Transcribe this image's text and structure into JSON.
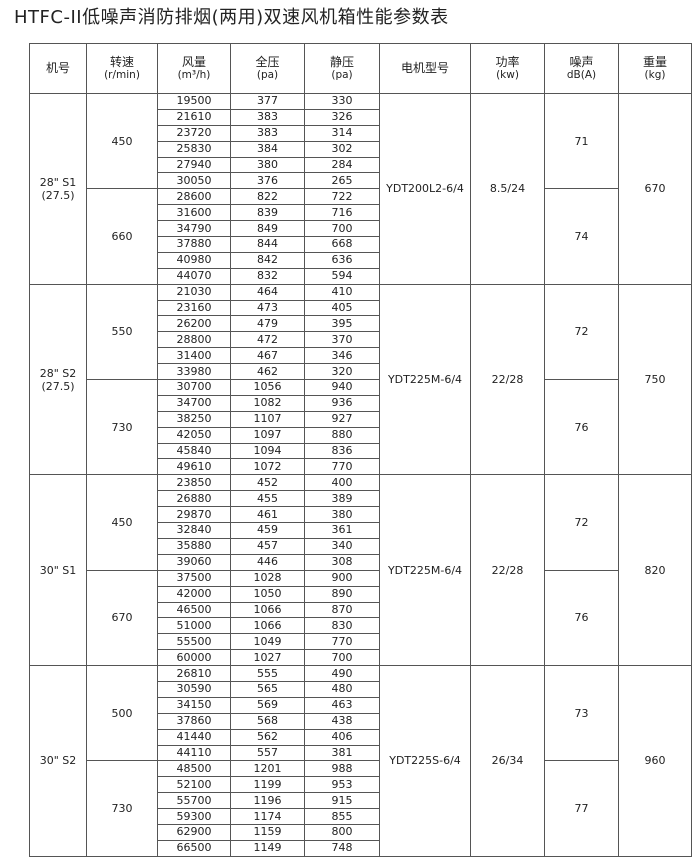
{
  "title": "HTFC-II低噪声消防排烟(两用)双速风机箱性能参数表",
  "headers": [
    {
      "label": "机号",
      "unit": ""
    },
    {
      "label": "转速",
      "unit": "(r/min)"
    },
    {
      "label": "风量",
      "unit": "(m³/h)"
    },
    {
      "label": "全压",
      "unit": "(pa)"
    },
    {
      "label": "静压",
      "unit": "(pa)"
    },
    {
      "label": "电机型号",
      "unit": ""
    },
    {
      "label": "功率",
      "unit": "(kw)"
    },
    {
      "label": "噪声",
      "unit": "dB(A)"
    },
    {
      "label": "重量",
      "unit": "(kg)"
    }
  ],
  "groups": [
    {
      "model": "28\" S1",
      "model_sub": "(27.5)",
      "motor": "YDT200L2-6/4",
      "power": "8.5/24",
      "weight": "670",
      "speeds": [
        {
          "rpm": "450",
          "noise": "71",
          "rows": [
            [
              "19500",
              "377",
              "330"
            ],
            [
              "21610",
              "383",
              "326"
            ],
            [
              "23720",
              "383",
              "314"
            ],
            [
              "25830",
              "384",
              "302"
            ],
            [
              "27940",
              "380",
              "284"
            ],
            [
              "30050",
              "376",
              "265"
            ]
          ]
        },
        {
          "rpm": "660",
          "noise": "74",
          "rows": [
            [
              "28600",
              "822",
              "722"
            ],
            [
              "31600",
              "839",
              "716"
            ],
            [
              "34790",
              "849",
              "700"
            ],
            [
              "37880",
              "844",
              "668"
            ],
            [
              "40980",
              "842",
              "636"
            ],
            [
              "44070",
              "832",
              "594"
            ]
          ]
        }
      ]
    },
    {
      "model": "28\" S2",
      "model_sub": "(27.5)",
      "motor": "YDT225M-6/4",
      "power": "22/28",
      "weight": "750",
      "speeds": [
        {
          "rpm": "550",
          "noise": "72",
          "rows": [
            [
              "21030",
              "464",
              "410"
            ],
            [
              "23160",
              "473",
              "405"
            ],
            [
              "26200",
              "479",
              "395"
            ],
            [
              "28800",
              "472",
              "370"
            ],
            [
              "31400",
              "467",
              "346"
            ],
            [
              "33980",
              "462",
              "320"
            ]
          ]
        },
        {
          "rpm": "730",
          "noise": "76",
          "rows": [
            [
              "30700",
              "1056",
              "940"
            ],
            [
              "34700",
              "1082",
              "936"
            ],
            [
              "38250",
              "1107",
              "927"
            ],
            [
              "42050",
              "1097",
              "880"
            ],
            [
              "45840",
              "1094",
              "836"
            ],
            [
              "49610",
              "1072",
              "770"
            ]
          ]
        }
      ]
    },
    {
      "model": "30\" S1",
      "model_sub": "",
      "motor": "YDT225M-6/4",
      "power": "22/28",
      "weight": "820",
      "speeds": [
        {
          "rpm": "450",
          "noise": "72",
          "rows": [
            [
              "23850",
              "452",
              "400"
            ],
            [
              "26880",
              "455",
              "389"
            ],
            [
              "29870",
              "461",
              "380"
            ],
            [
              "32840",
              "459",
              "361"
            ],
            [
              "35880",
              "457",
              "340"
            ],
            [
              "39060",
              "446",
              "308"
            ]
          ]
        },
        {
          "rpm": "670",
          "noise": "76",
          "rows": [
            [
              "37500",
              "1028",
              "900"
            ],
            [
              "42000",
              "1050",
              "890"
            ],
            [
              "46500",
              "1066",
              "870"
            ],
            [
              "51000",
              "1066",
              "830"
            ],
            [
              "55500",
              "1049",
              "770"
            ],
            [
              "60000",
              "1027",
              "700"
            ]
          ]
        }
      ]
    },
    {
      "model": "30\" S2",
      "model_sub": "",
      "motor": "YDT225S-6/4",
      "power": "26/34",
      "weight": "960",
      "speeds": [
        {
          "rpm": "500",
          "noise": "73",
          "rows": [
            [
              "26810",
              "555",
              "490"
            ],
            [
              "30590",
              "565",
              "480"
            ],
            [
              "34150",
              "569",
              "463"
            ],
            [
              "37860",
              "568",
              "438"
            ],
            [
              "41440",
              "562",
              "406"
            ],
            [
              "44110",
              "557",
              "381"
            ]
          ]
        },
        {
          "rpm": "730",
          "noise": "77",
          "rows": [
            [
              "48500",
              "1201",
              "988"
            ],
            [
              "52100",
              "1199",
              "953"
            ],
            [
              "55700",
              "1196",
              "915"
            ],
            [
              "59300",
              "1174",
              "855"
            ],
            [
              "62900",
              "1159",
              "800"
            ],
            [
              "66500",
              "1149",
              "748"
            ]
          ]
        }
      ]
    }
  ]
}
